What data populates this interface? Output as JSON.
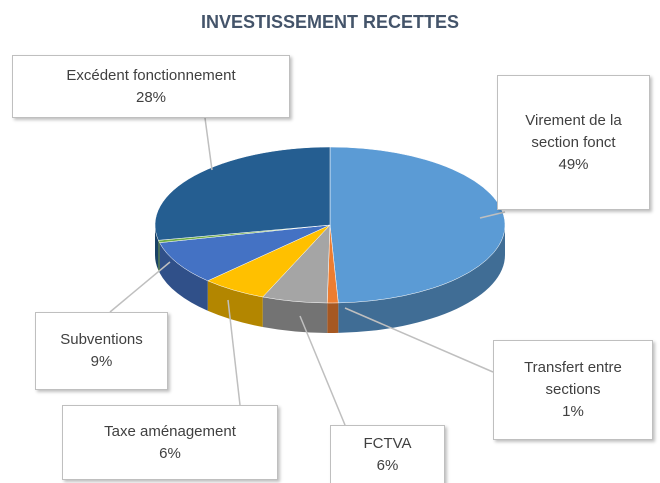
{
  "chart_data": {
    "type": "pie",
    "title": "INVESTISSEMENT RECETTES",
    "categories": [
      "Virement de la section fonct",
      "Transfert entre sections",
      "FCTVA",
      "Taxe aménagement",
      "Subventions",
      null,
      "Excédent fonctionnement"
    ],
    "values": [
      49,
      1,
      6,
      6,
      9,
      0.5,
      28
    ],
    "value_labels": [
      "49%",
      "1%",
      "6%",
      "6%",
      "9%",
      null,
      "28%"
    ],
    "colors": [
      "#5b9bd5",
      "#ed7d31",
      "#a5a5a5",
      "#ffc000",
      "#4472c4",
      "#70ad47",
      "#255e91"
    ],
    "style": "3d"
  }
}
